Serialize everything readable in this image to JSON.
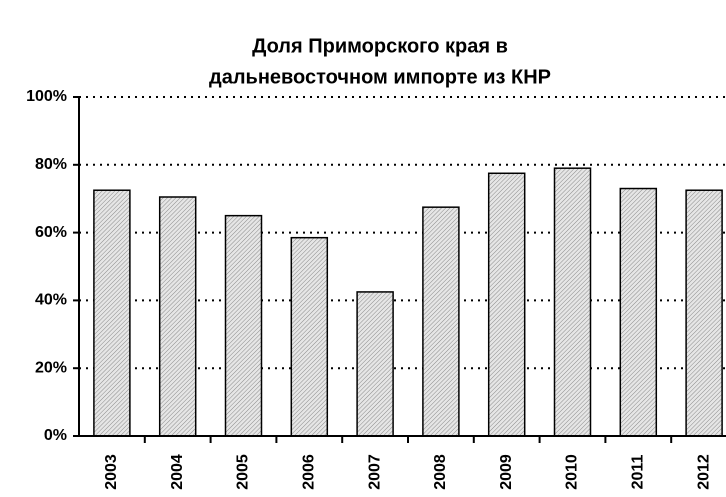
{
  "chart_data": {
    "type": "bar",
    "title": [
      "Доля Приморского края в",
      "дальневосточном импорте из КНР"
    ],
    "categories": [
      "2003",
      "2004",
      "2005",
      "2006",
      "2007",
      "2008",
      "2009",
      "2010",
      "2011",
      "2012"
    ],
    "values": [
      72.5,
      70.5,
      65,
      58.5,
      42.5,
      67.5,
      77.5,
      79,
      73,
      72.5
    ],
    "color": "#c8c8c8",
    "ylim": [
      0,
      100
    ],
    "yticks": [
      {
        "value": 0,
        "label": "0%"
      },
      {
        "value": 20,
        "label": "20%"
      },
      {
        "value": 40,
        "label": "40%"
      },
      {
        "value": 60,
        "label": "60%"
      },
      {
        "value": 80,
        "label": "80%"
      },
      {
        "value": 100,
        "label": "100%"
      }
    ],
    "grid": true
  }
}
